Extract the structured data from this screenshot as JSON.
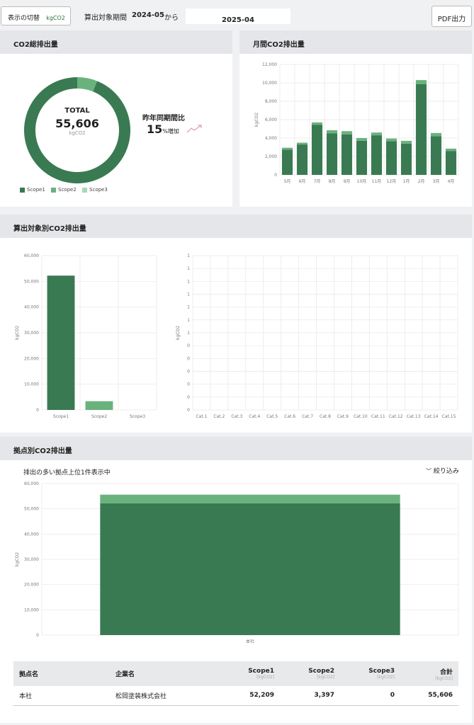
{
  "toolbar": {
    "toggle_label": "表示の切替",
    "unit_badge": "kgCO2",
    "period_label": "算出対象期間",
    "start_period": "2024-05",
    "range_word": "から",
    "end_period": "2025-04",
    "pdf_button": "PDF出力"
  },
  "total_panel": {
    "title": "CO2総排出量",
    "total_caption": "TOTAL",
    "total_value": "55,606",
    "total_unit": "kgCO2",
    "yoy_label": "昨年同期間比",
    "yoy_value": "15",
    "yoy_suffix": "%増加",
    "legend": [
      "Scope1",
      "Scope2",
      "Scope3"
    ]
  },
  "monthly_panel": {
    "title": "月間CO2排出量"
  },
  "category_panel": {
    "title": "算出対象別CO2排出量"
  },
  "site_panel": {
    "title": "拠点別CO2排出量",
    "subtitle": "排出の多い拠点上位1件表示中",
    "filter_label": "絞り込み",
    "table": {
      "headers": [
        "拠点名",
        "企業名",
        "Scope1",
        "Scope2",
        "Scope3",
        "合計"
      ],
      "units": [
        "[kgCO2]",
        "[kgCO2]",
        "[kgCO2]",
        "[kgCO2]"
      ],
      "rows": [
        [
          "本社",
          "松岡塗装株式会社",
          "52,209",
          "3,397",
          "0",
          "55,606"
        ]
      ]
    }
  },
  "colors": {
    "scope1": "#3a7a52",
    "scope2": "#69b27e",
    "scope3": "#a9d8b3"
  },
  "chart_data": [
    {
      "type": "pie",
      "categories": [
        "Scope1",
        "Scope2",
        "Scope3"
      ],
      "values": [
        52209,
        3397,
        0
      ]
    },
    {
      "type": "bar",
      "categories": [
        "5月",
        "6月",
        "7月",
        "8月",
        "9月",
        "10月",
        "11月",
        "12月",
        "1月",
        "2月",
        "3月",
        "4月"
      ],
      "series": [
        {
          "name": "Scope1",
          "values": [
            2750,
            3300,
            5450,
            4500,
            4400,
            3700,
            4300,
            3650,
            3400,
            9850,
            4200,
            2600
          ]
        },
        {
          "name": "Scope2",
          "values": [
            200,
            200,
            250,
            350,
            350,
            300,
            300,
            300,
            300,
            450,
            350,
            250
          ]
        }
      ],
      "ylabel": "kgCO2",
      "ylim": [
        0,
        12000
      ],
      "yticks": [
        "0",
        "2,000",
        "4,000",
        "6,000",
        "8,000",
        "10,000",
        "12,000"
      ]
    },
    {
      "type": "bar",
      "categories": [
        "Scope1",
        "Scope2",
        "Scope3"
      ],
      "values": [
        52209,
        3397,
        0
      ],
      "ylabel": "kgCO2",
      "ylim": [
        0,
        60000
      ],
      "yticks": [
        "0",
        "10,000",
        "20,000",
        "30,000",
        "40,000",
        "50,000",
        "60,000"
      ]
    },
    {
      "type": "bar",
      "categories": [
        "Cat.1",
        "Cat.2",
        "Cat.3",
        "Cat.4",
        "Cat.5",
        "Cat.6",
        "Cat.7",
        "Cat.8",
        "Cat.9",
        "Cat.10",
        "Cat.11",
        "Cat.12",
        "Cat.13",
        "Cat.14",
        "Cat.15"
      ],
      "values": [
        0,
        0,
        0,
        0,
        0,
        0,
        0,
        0,
        0,
        0,
        0,
        0,
        0,
        0,
        0
      ],
      "ylabel": "kgCO2",
      "yticks": [
        "0",
        "0",
        "0",
        "0",
        "0",
        "0",
        "1",
        "1",
        "1",
        "1",
        "1",
        "1",
        "1"
      ]
    },
    {
      "type": "bar",
      "categories": [
        "本社"
      ],
      "series": [
        {
          "name": "Scope1",
          "values": [
            52209
          ]
        },
        {
          "name": "Scope2",
          "values": [
            3397
          ]
        }
      ],
      "ylabel": "kgCO2",
      "ylim": [
        0,
        60000
      ],
      "yticks": [
        "0",
        "10,000",
        "20,000",
        "30,000",
        "40,000",
        "50,000",
        "60,000"
      ]
    }
  ]
}
